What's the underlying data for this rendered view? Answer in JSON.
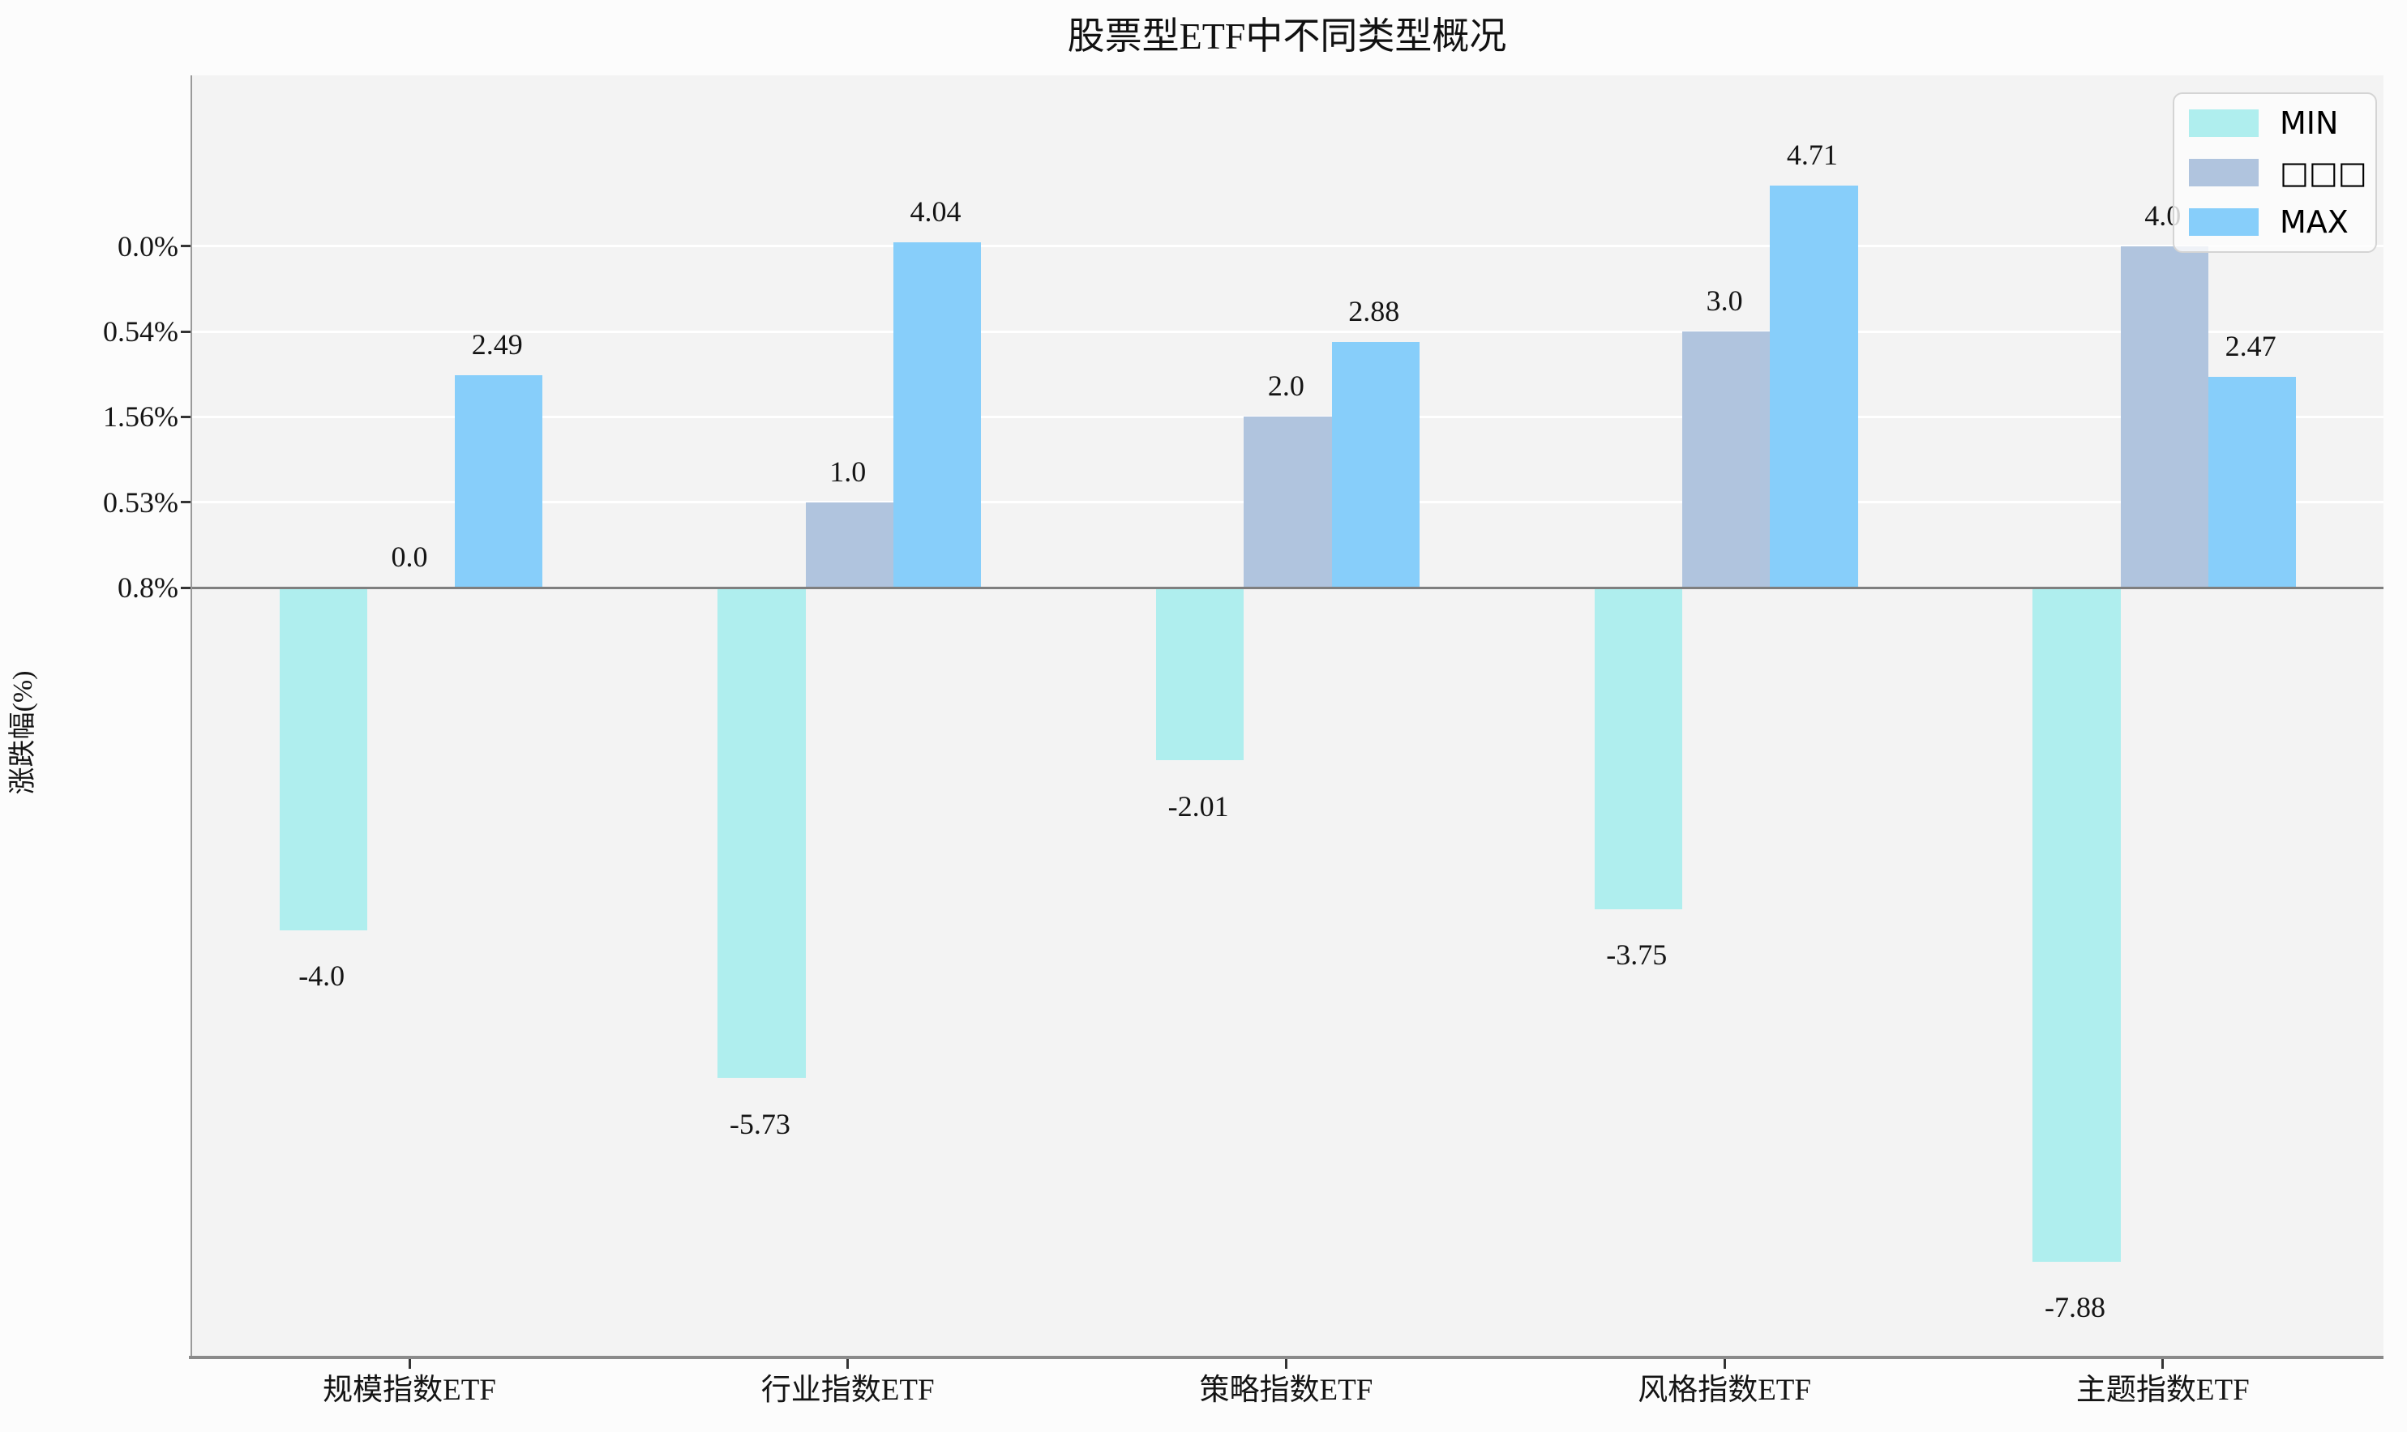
{
  "chart_data": {
    "type": "bar",
    "title": "股票型ETF中不同类型概况",
    "ylabel": "涨跌幅(%)",
    "xlabel": "",
    "categories": [
      "规模指数ETF",
      "行业指数ETF",
      "策略指数ETF",
      "风格指数ETF",
      "主题指数ETF"
    ],
    "series": [
      {
        "name": "MIN",
        "color": "#AFEEEE",
        "values": [
          -4.0,
          -5.73,
          -2.01,
          -3.75,
          -7.88
        ],
        "labels": [
          "-4.0",
          "-5.73",
          "-2.01",
          "-3.75",
          "-7.88"
        ]
      },
      {
        "name": "□□□",
        "color": "#B0C4DE",
        "values": [
          0.0,
          1.0,
          2.0,
          3.0,
          4.0
        ],
        "labels": [
          "0.0",
          "1.0",
          "2.0",
          "3.0",
          "4.0"
        ]
      },
      {
        "name": "MAX",
        "color": "#87CEFA",
        "values": [
          2.49,
          4.04,
          2.88,
          4.71,
          2.47
        ],
        "labels": [
          "2.49",
          "4.04",
          "2.88",
          "4.71",
          "2.47"
        ]
      }
    ],
    "y_ticks": [
      {
        "value": 4,
        "label": "0.0%"
      },
      {
        "value": 3,
        "label": "0.54%"
      },
      {
        "value": 2,
        "label": "1.56%"
      },
      {
        "value": 1,
        "label": "0.53%"
      },
      {
        "value": 0,
        "label": "0.8%"
      }
    ],
    "ylim": [
      -9,
      6
    ],
    "grid": true,
    "legend_position": "upper right",
    "colors": {
      "axes_background": "#f3f3f3",
      "figure_background": "#fcfcfc",
      "gridline": "#ffffff",
      "zero_line": "#7f7f7f",
      "spine": "#8a8a8a"
    }
  }
}
